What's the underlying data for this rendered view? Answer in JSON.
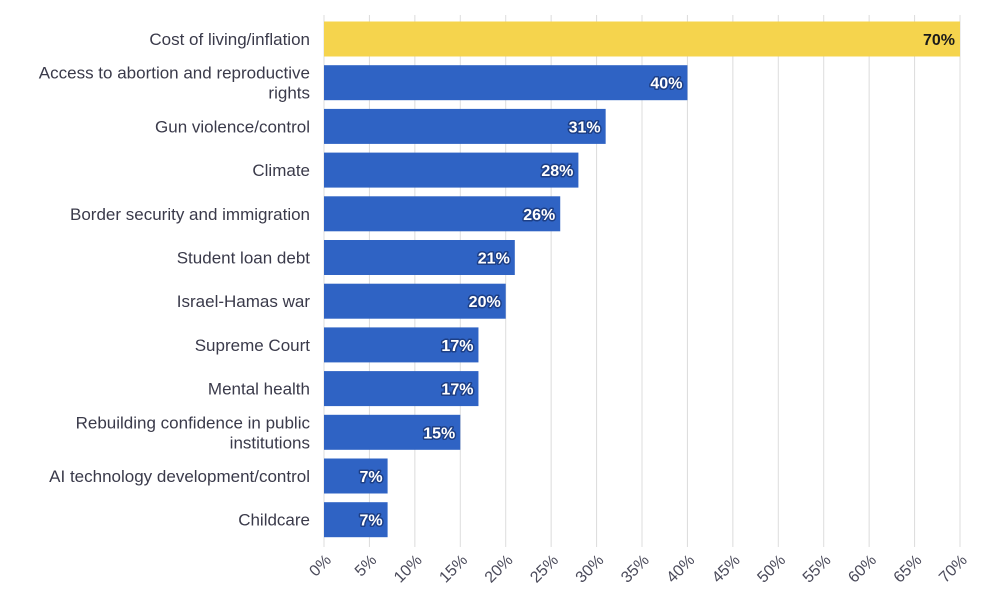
{
  "chart_data": {
    "type": "bar",
    "orientation": "horizontal",
    "categories": [
      [
        "Cost of living/inflation"
      ],
      [
        "Access to abortion and reproductive",
        "rights"
      ],
      [
        "Gun violence/control"
      ],
      [
        "Climate"
      ],
      [
        "Border security and immigration"
      ],
      [
        "Student loan debt"
      ],
      [
        "Israel-Hamas war"
      ],
      [
        "Supreme Court"
      ],
      [
        "Mental health"
      ],
      [
        "Rebuilding confidence in public",
        "institutions"
      ],
      [
        "AI technology development/control"
      ],
      [
        "Childcare"
      ]
    ],
    "values": [
      70,
      40,
      31,
      28,
      26,
      21,
      20,
      17,
      17,
      15,
      7,
      7
    ],
    "value_labels": [
      "70%",
      "40%",
      "31%",
      "28%",
      "26%",
      "21%",
      "20%",
      "17%",
      "17%",
      "15%",
      "7%",
      "7%"
    ],
    "x_ticks": [
      0,
      5,
      10,
      15,
      20,
      25,
      30,
      35,
      40,
      45,
      50,
      55,
      60,
      65,
      70
    ],
    "x_tick_labels": [
      "0%",
      "5%",
      "10%",
      "15%",
      "20%",
      "25%",
      "30%",
      "35%",
      "40%",
      "45%",
      "50%",
      "55%",
      "60%",
      "65%",
      "70%"
    ],
    "xlim": [
      0,
      70
    ],
    "highlight_index": 0,
    "colors": {
      "highlight": "#f5d44d",
      "bar": "#2f63c4",
      "grid": "#dcdcdc",
      "label_highlight_text": "#1a1a1a",
      "label_text": "#ffffff",
      "label_outline": "#1d3f86"
    },
    "title": "",
    "xlabel": "",
    "ylabel": ""
  }
}
